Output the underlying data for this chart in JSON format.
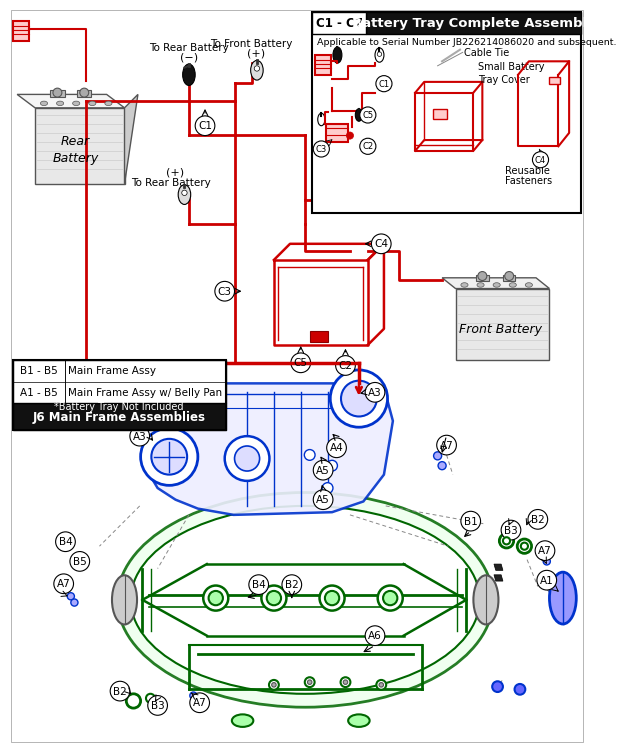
{
  "bg_color": "#ffffff",
  "inset_title": "Battery Tray Complete Assembly",
  "inset_subtitle": "C1 - C7",
  "inset_serial": "Applicable to Serial Number JB226214086020 and subsequent.",
  "table_title": "J6 Main Frame Assemblies",
  "table_subtitle": "*Battery Tray Not Included",
  "table_rows": [
    [
      "A1 - B5",
      "Main Frame Assy w/ Belly Pan"
    ],
    [
      "B1 - B5",
      "Main Frame Assy"
    ]
  ],
  "RED": "#cc0000",
  "BLUE": "#0033cc",
  "GREEN": "#006600",
  "BLACK": "#000000",
  "DGRAY": "#555555",
  "LGRAY": "#aaaaaa",
  "MGRAY": "#888888"
}
